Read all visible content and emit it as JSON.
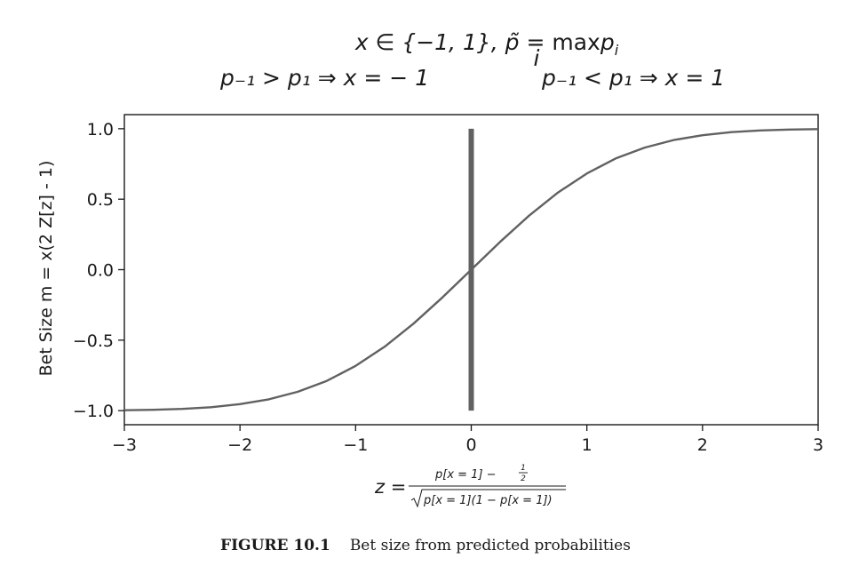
{
  "chart_data": {
    "type": "line",
    "title_line1": {
      "set": "x ∈ {−1, 1}, ",
      "ptilde": "p̃ = ",
      "max": "max",
      "max_sub": "i",
      "pi": "p",
      "pi_sub": "i"
    },
    "title_line2_left": "p₋₁ > p₁ ⇒ x = − 1",
    "title_line2_right": "p₋₁ < p₁ ⇒ x = 1",
    "ylabel": "Bet Size m = x(2 Z[z] - 1)",
    "xlabel": {
      "lhs": "z =",
      "numerator": "p[x = 1] − ",
      "half_num": "1",
      "half_den": "2",
      "denominator": "p[x = 1](1 − p[x = 1])"
    },
    "xlim": [
      -3,
      3
    ],
    "ylim": [
      -1.1,
      1.1
    ],
    "xticks": [
      -3,
      -2,
      -1,
      0,
      1,
      2,
      3
    ],
    "xtick_labels": [
      "−3",
      "−2",
      "−1",
      "0",
      "1",
      "2",
      "3"
    ],
    "yticks": [
      1.0,
      0.5,
      0.0,
      -0.5,
      -1.0
    ],
    "ytick_labels": [
      "1.0",
      "0.5",
      "0.0",
      "−0.5",
      "−1.0"
    ],
    "grid": false,
    "series": [
      {
        "color": "#616161",
        "x": [
          -3,
          -2.75,
          -2.5,
          -2.25,
          -2,
          -1.75,
          -1.5,
          -1.25,
          -1,
          -0.75,
          -0.5,
          -0.25,
          0,
          0.25,
          0.5,
          0.75,
          1,
          1.25,
          1.5,
          1.75,
          2,
          2.25,
          2.5,
          2.75,
          3
        ],
        "y": [
          -0.997,
          -0.994,
          -0.988,
          -0.976,
          -0.954,
          -0.92,
          -0.866,
          -0.789,
          -0.683,
          -0.547,
          -0.383,
          -0.197,
          0,
          0.197,
          0.383,
          0.547,
          0.683,
          0.789,
          0.866,
          0.92,
          0.954,
          0.976,
          0.988,
          0.994,
          0.997
        ]
      }
    ],
    "vline": {
      "x": 0,
      "y0": -1,
      "y1": 1,
      "color": "#616161"
    }
  },
  "caption": {
    "figure_number": "FIGURE 10.1",
    "text": "Bet size from predicted probabilities"
  }
}
